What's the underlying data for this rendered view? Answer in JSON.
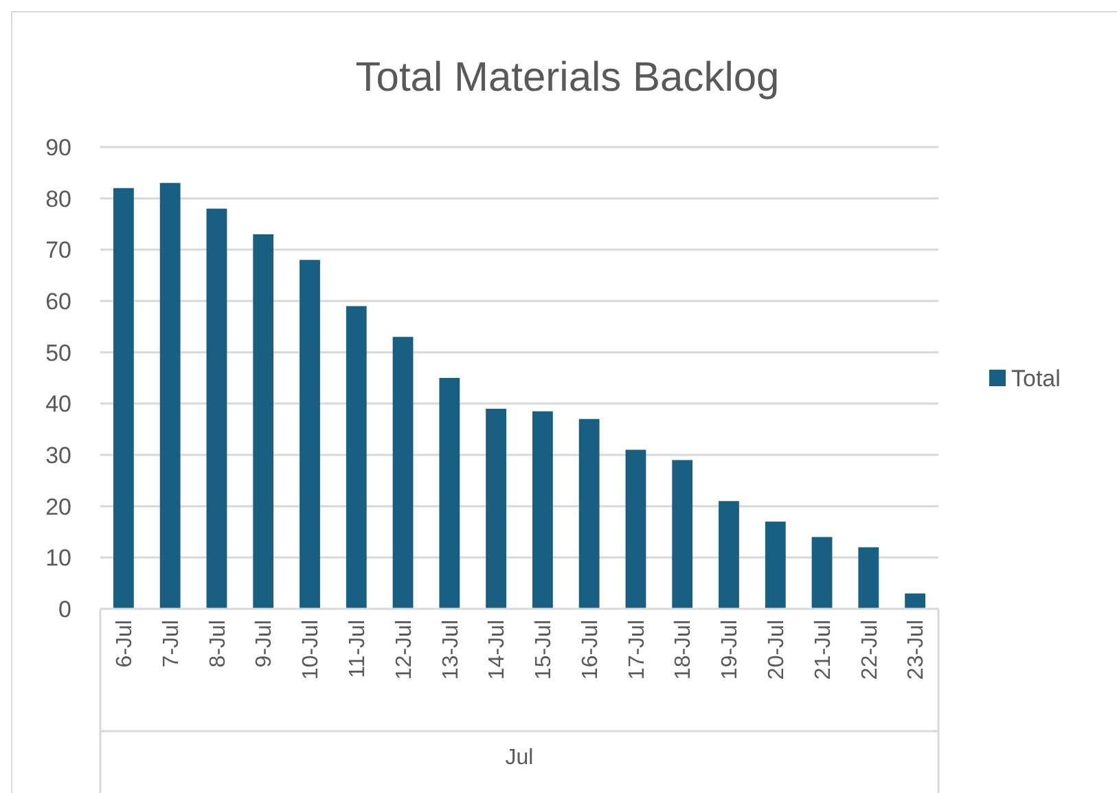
{
  "chart_data": {
    "type": "bar",
    "title": "Total Materials Backlog",
    "xlabel": "Jul",
    "categories": [
      "6-Jul",
      "7-Jul",
      "8-Jul",
      "9-Jul",
      "10-Jul",
      "11-Jul",
      "12-Jul",
      "13-Jul",
      "14-Jul",
      "15-Jul",
      "16-Jul",
      "17-Jul",
      "18-Jul",
      "19-Jul",
      "20-Jul",
      "21-Jul",
      "22-Jul",
      "23-Jul"
    ],
    "series": [
      {
        "name": "Total",
        "color": "#185f82",
        "values": [
          82,
          83,
          78,
          73,
          68,
          59,
          53,
          45,
          39,
          38.5,
          37,
          31,
          29,
          21,
          17,
          14,
          12,
          3
        ]
      }
    ],
    "ylim": [
      0,
      90
    ],
    "yticks": [
      0,
      10,
      20,
      30,
      40,
      50,
      60,
      70,
      80,
      90
    ],
    "grid": "y",
    "legend": "right"
  }
}
